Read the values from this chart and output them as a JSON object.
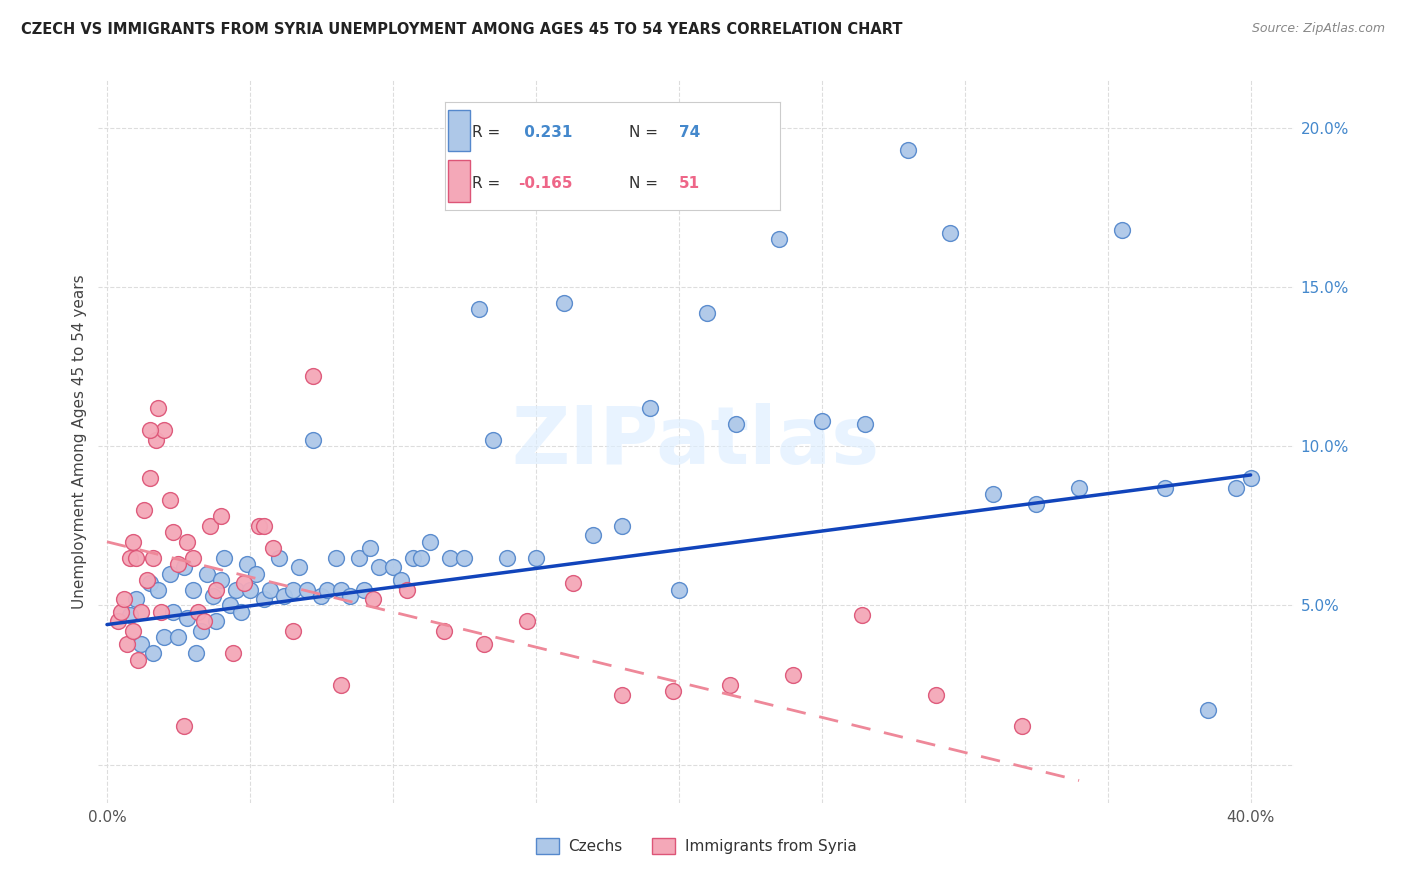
{
  "title": "CZECH VS IMMIGRANTS FROM SYRIA UNEMPLOYMENT AMONG AGES 45 TO 54 YEARS CORRELATION CHART",
  "source": "Source: ZipAtlas.com",
  "ylabel": "Unemployment Among Ages 45 to 54 years",
  "xlim": [
    -0.003,
    0.415
  ],
  "ylim": [
    -0.012,
    0.215
  ],
  "xtick_positions": [
    0.0,
    0.05,
    0.1,
    0.15,
    0.2,
    0.25,
    0.3,
    0.35,
    0.4
  ],
  "xtick_labels": [
    "0.0%",
    "",
    "",
    "",
    "",
    "",
    "",
    "",
    "40.0%"
  ],
  "ytick_positions": [
    0.0,
    0.05,
    0.1,
    0.15,
    0.2
  ],
  "ytick_labels": [
    "",
    "5.0%",
    "10.0%",
    "15.0%",
    "20.0%"
  ],
  "czech_color": "#aec8e8",
  "czech_edge": "#5588cc",
  "syria_color": "#f4a8b8",
  "syria_edge": "#dd5577",
  "trend_czech_color": "#1144bb",
  "trend_syria_color": "#ee8899",
  "grid_color": "#dddddd",
  "watermark_color": "#ddeeff",
  "watermark": "ZIPatlas",
  "czech_label": "Czechs",
  "syria_label": "Immigrants from Syria",
  "legend_R_czech_pre": "R = ",
  "legend_R_czech_val": " 0.231",
  "legend_N_czech_pre": "N = ",
  "legend_N_czech_val": "74",
  "legend_R_syria_pre": "R = ",
  "legend_R_syria_val": "-0.165",
  "legend_N_syria_pre": "N = ",
  "legend_N_syria_val": "51",
  "val_color_czech": "#4488cc",
  "val_color_syria": "#ee6688",
  "czech_x": [
    0.008,
    0.01,
    0.012,
    0.015,
    0.016,
    0.018,
    0.02,
    0.022,
    0.023,
    0.025,
    0.027,
    0.028,
    0.03,
    0.031,
    0.033,
    0.035,
    0.037,
    0.038,
    0.04,
    0.041,
    0.043,
    0.045,
    0.047,
    0.049,
    0.05,
    0.052,
    0.055,
    0.057,
    0.06,
    0.062,
    0.065,
    0.067,
    0.07,
    0.072,
    0.075,
    0.077,
    0.08,
    0.082,
    0.085,
    0.088,
    0.09,
    0.092,
    0.095,
    0.1,
    0.103,
    0.107,
    0.11,
    0.113,
    0.12,
    0.125,
    0.13,
    0.135,
    0.14,
    0.15,
    0.16,
    0.17,
    0.18,
    0.19,
    0.2,
    0.21,
    0.22,
    0.235,
    0.25,
    0.265,
    0.28,
    0.295,
    0.31,
    0.325,
    0.34,
    0.355,
    0.37,
    0.385,
    0.395,
    0.4
  ],
  "czech_y": [
    0.047,
    0.052,
    0.038,
    0.057,
    0.035,
    0.055,
    0.04,
    0.06,
    0.048,
    0.04,
    0.062,
    0.046,
    0.055,
    0.035,
    0.042,
    0.06,
    0.053,
    0.045,
    0.058,
    0.065,
    0.05,
    0.055,
    0.048,
    0.063,
    0.055,
    0.06,
    0.052,
    0.055,
    0.065,
    0.053,
    0.055,
    0.062,
    0.055,
    0.102,
    0.053,
    0.055,
    0.065,
    0.055,
    0.053,
    0.065,
    0.055,
    0.068,
    0.062,
    0.062,
    0.058,
    0.065,
    0.065,
    0.07,
    0.065,
    0.065,
    0.143,
    0.102,
    0.065,
    0.065,
    0.145,
    0.072,
    0.075,
    0.112,
    0.055,
    0.142,
    0.107,
    0.165,
    0.108,
    0.107,
    0.193,
    0.167,
    0.085,
    0.082,
    0.087,
    0.168,
    0.087,
    0.017,
    0.087,
    0.09
  ],
  "syria_x": [
    0.004,
    0.005,
    0.006,
    0.007,
    0.008,
    0.009,
    0.009,
    0.01,
    0.011,
    0.012,
    0.013,
    0.014,
    0.015,
    0.016,
    0.017,
    0.018,
    0.02,
    0.022,
    0.025,
    0.028,
    0.032,
    0.036,
    0.04,
    0.044,
    0.048,
    0.053,
    0.058,
    0.065,
    0.072,
    0.082,
    0.093,
    0.105,
    0.118,
    0.132,
    0.147,
    0.163,
    0.18,
    0.198,
    0.218,
    0.24,
    0.264,
    0.29,
    0.32,
    0.015,
    0.019,
    0.023,
    0.027,
    0.03,
    0.034,
    0.038,
    0.055
  ],
  "syria_y": [
    0.045,
    0.048,
    0.052,
    0.038,
    0.065,
    0.042,
    0.07,
    0.065,
    0.033,
    0.048,
    0.08,
    0.058,
    0.09,
    0.065,
    0.102,
    0.112,
    0.105,
    0.083,
    0.063,
    0.07,
    0.048,
    0.075,
    0.078,
    0.035,
    0.057,
    0.075,
    0.068,
    0.042,
    0.122,
    0.025,
    0.052,
    0.055,
    0.042,
    0.038,
    0.045,
    0.057,
    0.022,
    0.023,
    0.025,
    0.028,
    0.047,
    0.022,
    0.012,
    0.105,
    0.048,
    0.073,
    0.012,
    0.065,
    0.045,
    0.055,
    0.075
  ],
  "czech_trend_x": [
    0.0,
    0.4
  ],
  "czech_trend_y": [
    0.044,
    0.091
  ],
  "syria_trend_x": [
    0.0,
    0.34
  ],
  "syria_trend_y": [
    0.07,
    -0.005
  ]
}
